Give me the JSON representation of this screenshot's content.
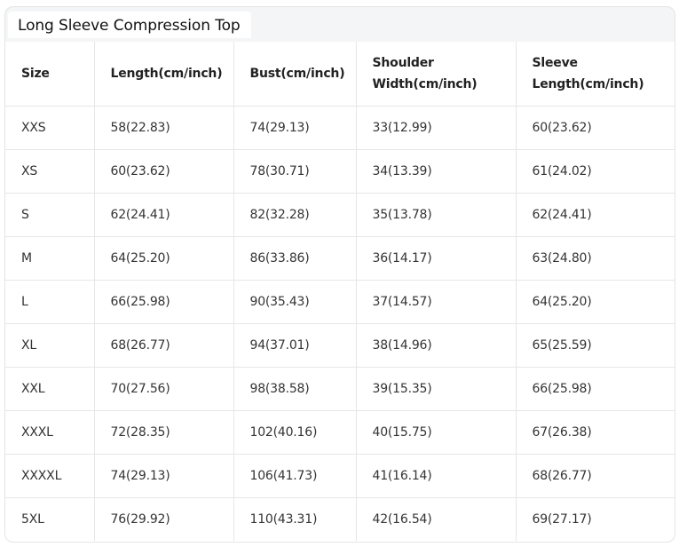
{
  "title": "Long Sleeve Compression Top",
  "table": {
    "headers": [
      "Size",
      "Length(cm/inch)",
      "Bust(cm/inch)",
      "Shoulder Width(cm/inch)",
      "Sleeve Length(cm/inch)"
    ],
    "rows": [
      [
        "XXS",
        "58(22.83)",
        "74(29.13)",
        "33(12.99)",
        "60(23.62)"
      ],
      [
        "XS",
        "60(23.62)",
        "78(30.71)",
        "34(13.39)",
        "61(24.02)"
      ],
      [
        "S",
        "62(24.41)",
        "82(32.28)",
        "35(13.78)",
        "62(24.41)"
      ],
      [
        "M",
        "64(25.20)",
        "86(33.86)",
        "36(14.17)",
        "63(24.80)"
      ],
      [
        "L",
        "66(25.98)",
        "90(35.43)",
        "37(14.57)",
        "64(25.20)"
      ],
      [
        "XL",
        "68(26.77)",
        "94(37.01)",
        "38(14.96)",
        "65(25.59)"
      ],
      [
        "XXL",
        "70(27.56)",
        "98(38.58)",
        "39(15.35)",
        "66(25.98)"
      ],
      [
        "XXXL",
        "72(28.35)",
        "102(40.16)",
        "40(15.75)",
        "67(26.38)"
      ],
      [
        "XXXXL",
        "74(29.13)",
        "106(41.73)",
        "41(16.14)",
        "68(26.77)"
      ],
      [
        "5XL",
        "76(29.92)",
        "110(43.31)",
        "42(16.54)",
        "69(27.17)"
      ]
    ]
  }
}
